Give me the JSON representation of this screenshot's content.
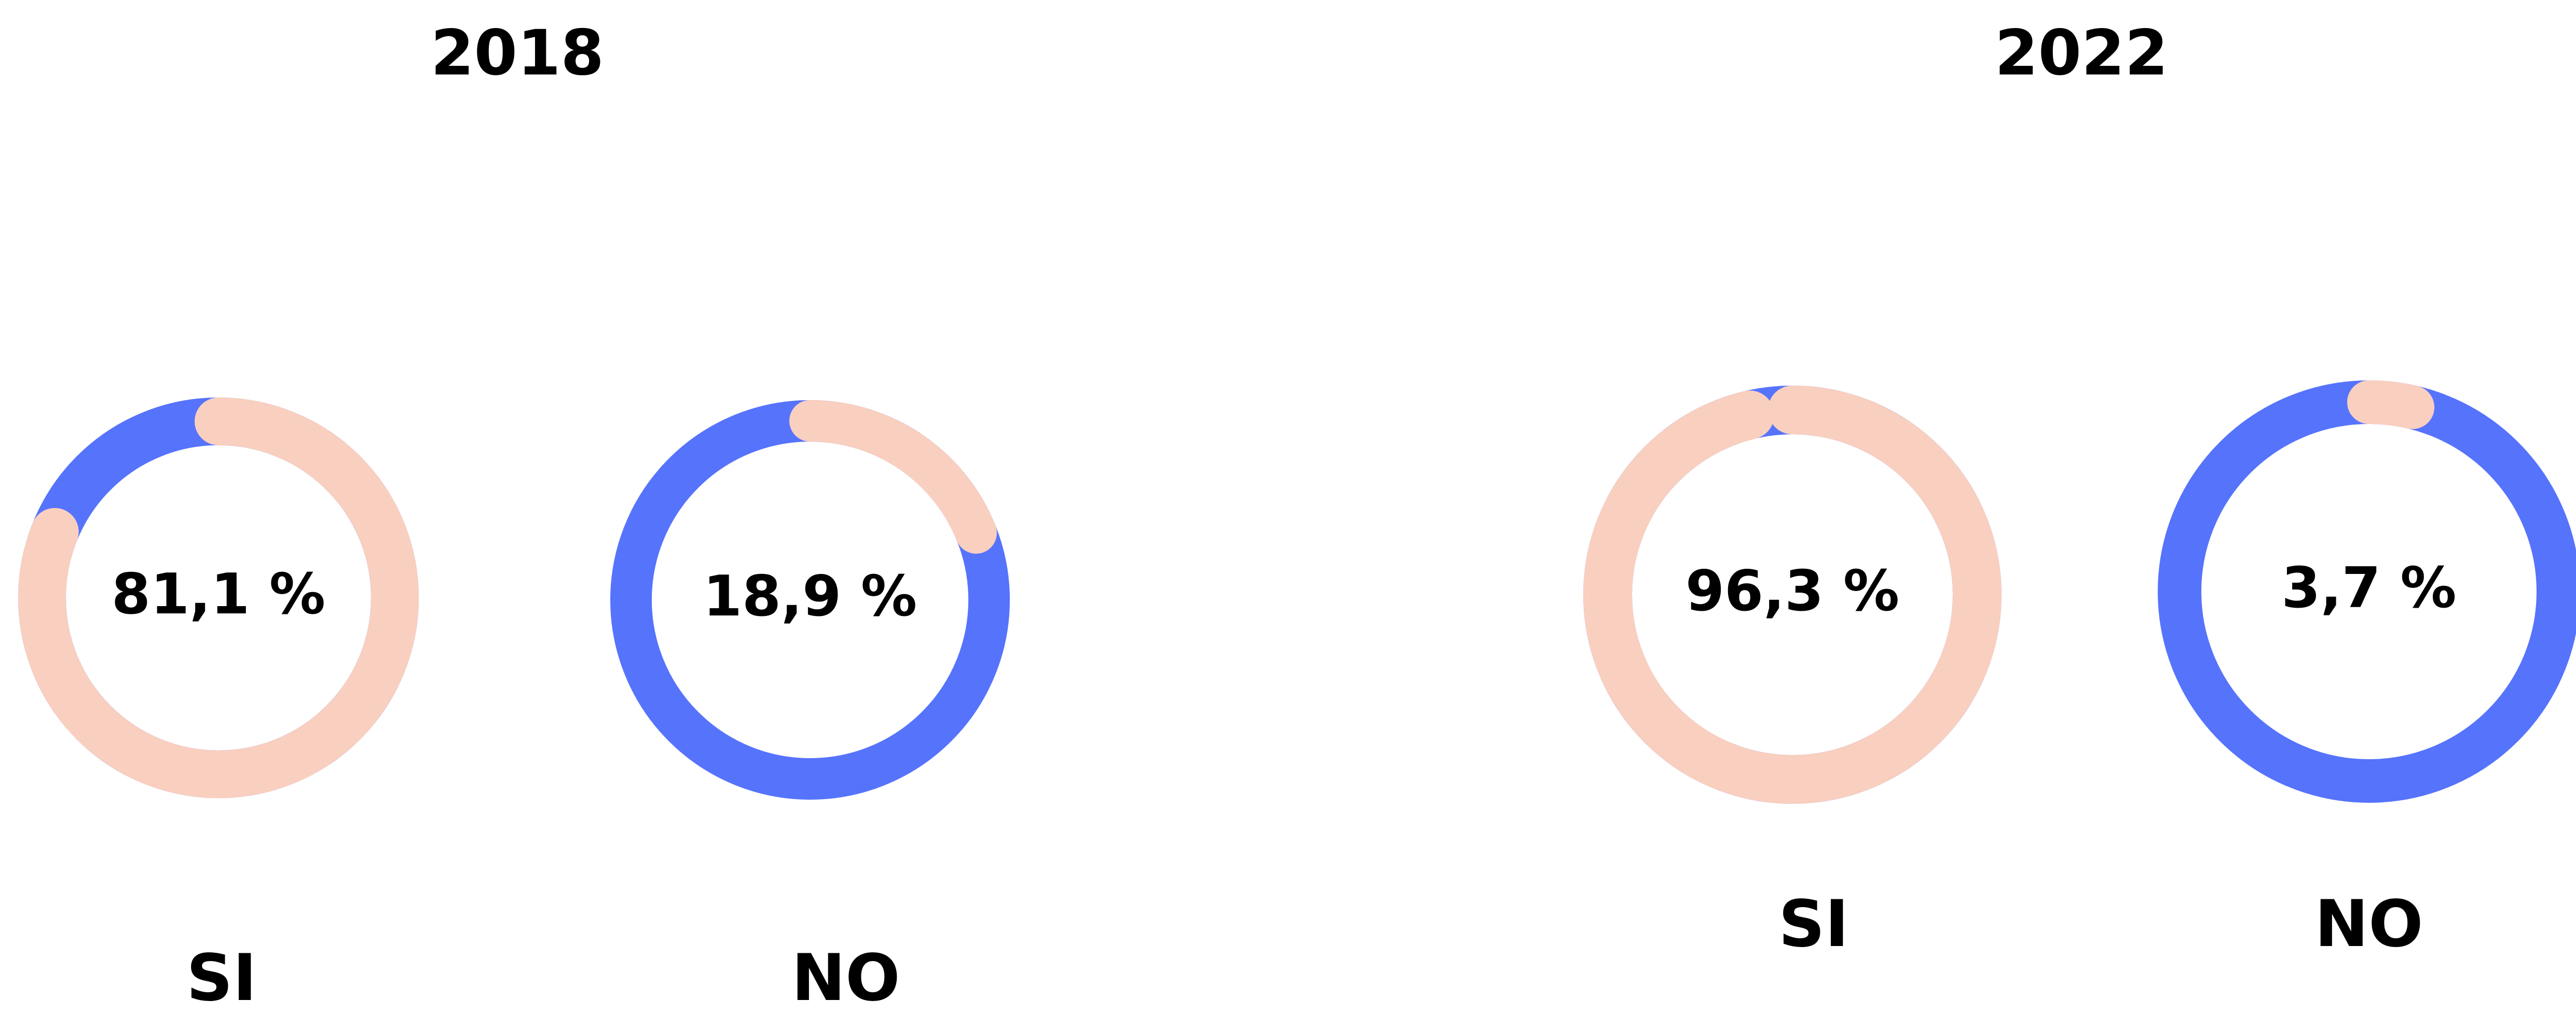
{
  "chart_data": [
    {
      "type": "donut",
      "title": "2018",
      "categories": [
        "SI",
        "NO"
      ],
      "values": [
        81.1,
        18.9
      ],
      "value_labels": [
        "81,1 %",
        "18,9 %"
      ],
      "color": "#f9cfbf",
      "track_color": "#5673fc"
    },
    {
      "type": "donut",
      "title": "2022",
      "categories": [
        "SI",
        "NO"
      ],
      "values": [
        96.3,
        3.7
      ],
      "value_labels": [
        "96,3 %",
        "3,7 %"
      ],
      "color": "#f9cfbf",
      "track_color": "#5673fc"
    }
  ]
}
